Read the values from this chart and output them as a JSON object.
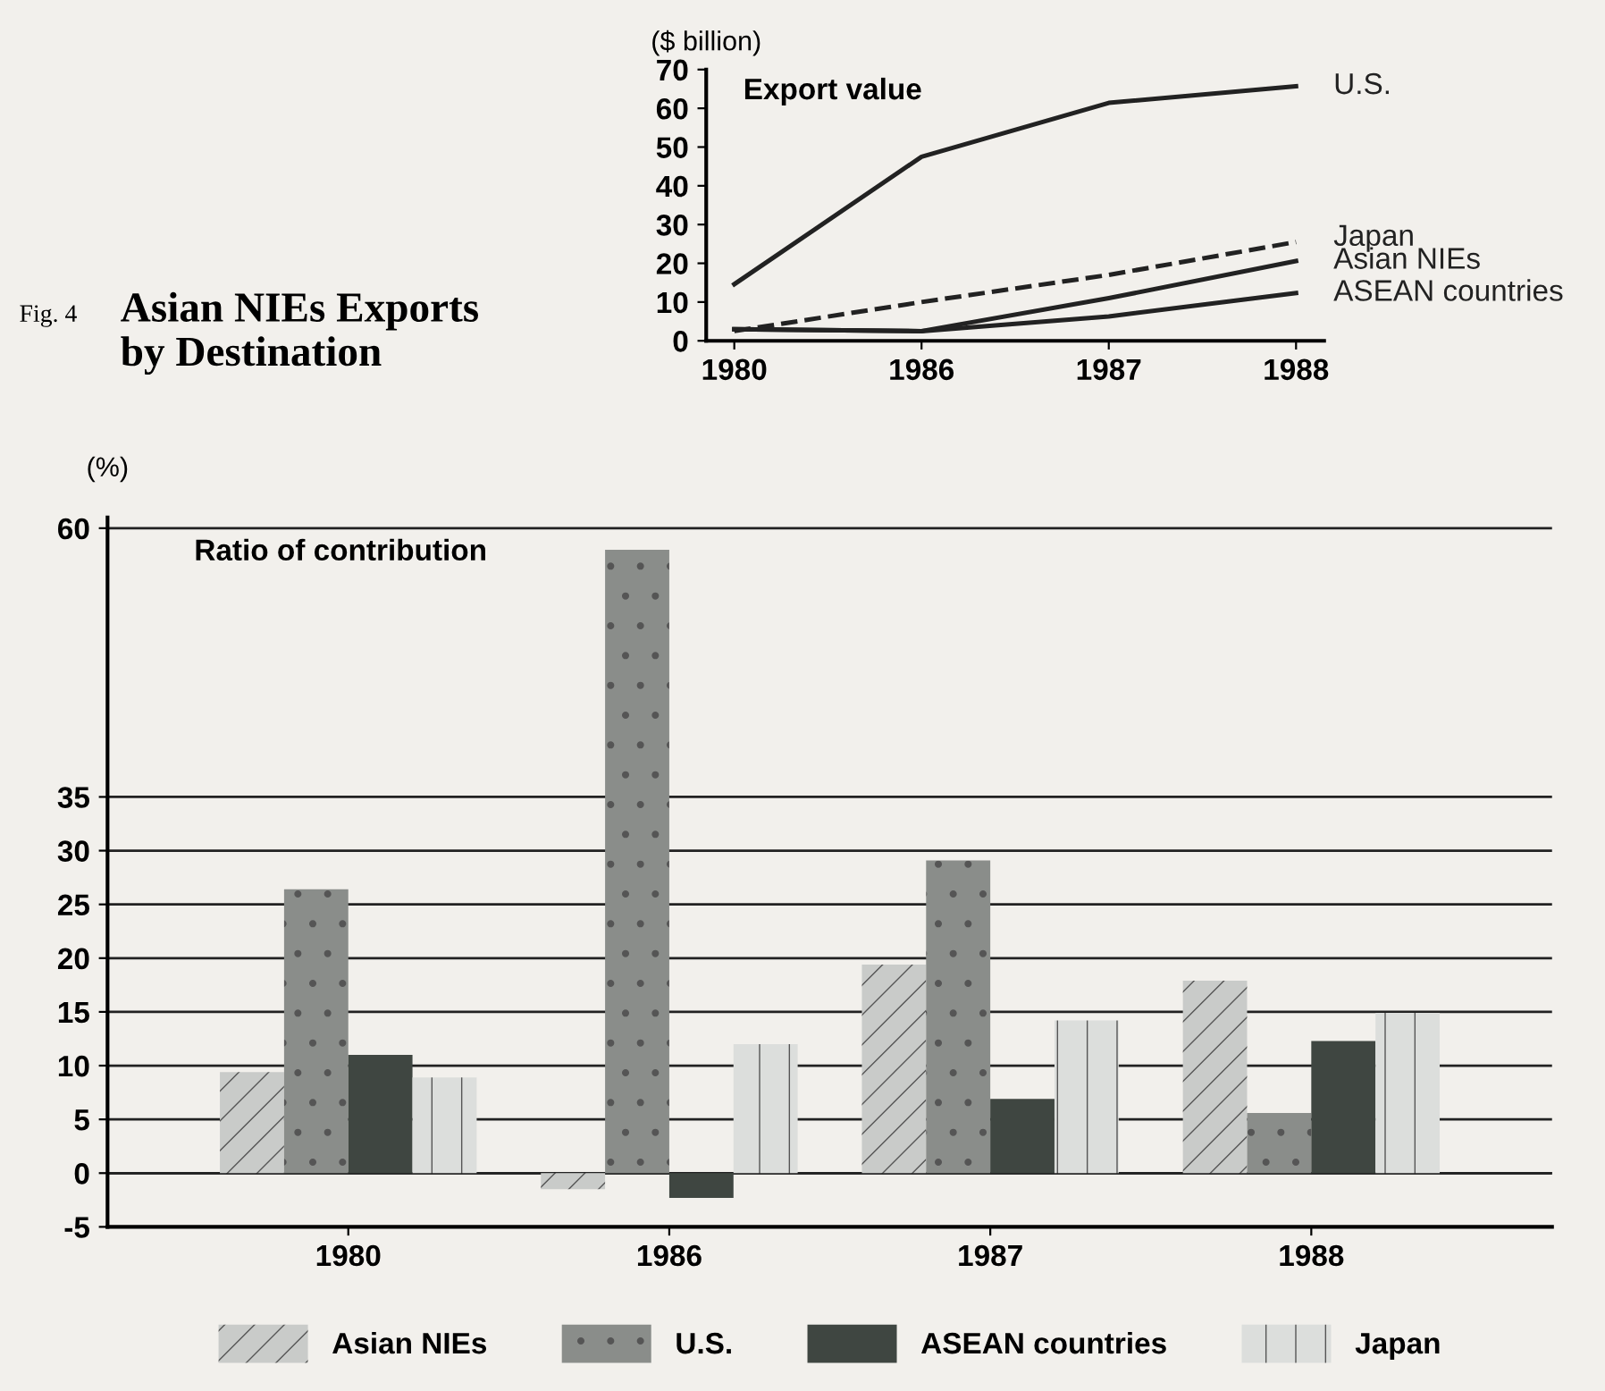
{
  "chart_data": [
    {
      "type": "line",
      "title": "Export value",
      "ylabel": "($ billion)",
      "categories": [
        "1980",
        "1986",
        "1987",
        "1988"
      ],
      "ylim": [
        0,
        70
      ],
      "yticks": [
        0,
        10,
        20,
        30,
        40,
        50,
        60,
        70
      ],
      "grid": false,
      "marker": "none",
      "series": [
        {
          "name": "U.S.",
          "color": "#222222",
          "line_style": "solid",
          "values": [
            14.6,
            47.5,
            61.4,
            65.7
          ]
        },
        {
          "name": "Japan",
          "color": "#222222",
          "line_style": "dashed",
          "values": [
            2.5,
            10,
            17,
            25.5
          ]
        },
        {
          "name": "Asian NIEs",
          "color": "#222222",
          "line_style": "solid",
          "values": [
            3,
            2.5,
            11,
            20.6
          ]
        },
        {
          "name": "ASEAN countries",
          "color": "#222222",
          "line_style": "solid",
          "values": [
            3,
            2.5,
            6.3,
            12.3
          ]
        }
      ],
      "annotations": [
        "Fig. 4",
        "Asian NIEs Exports\nby Destination"
      ]
    },
    {
      "type": "bar",
      "title": "Ratio of contribution",
      "ylabel": "(%)",
      "categories": [
        "1980",
        "1986",
        "1987",
        "1988"
      ],
      "ylim": [
        -5,
        61
      ],
      "yticks": [
        -5,
        0,
        5,
        10,
        15,
        20,
        25,
        30,
        35,
        60
      ],
      "grid": "y",
      "legend": "bottom",
      "series": [
        {
          "name": "Asian NIEs",
          "color": "#c9cbc9",
          "values": [
            9.4,
            -1.5,
            19.4,
            17.9
          ]
        },
        {
          "name": "U.S.",
          "color": "#8a8d8a",
          "values": [
            26.4,
            58,
            29.1,
            5.6
          ]
        },
        {
          "name": "ASEAN countries",
          "color": "#3f4641",
          "values": [
            11.0,
            -2.3,
            6.9,
            12.3
          ]
        },
        {
          "name": "Japan",
          "color": "#dcdedc",
          "values": [
            8.9,
            12.0,
            14.2,
            14.9
          ]
        }
      ]
    }
  ]
}
